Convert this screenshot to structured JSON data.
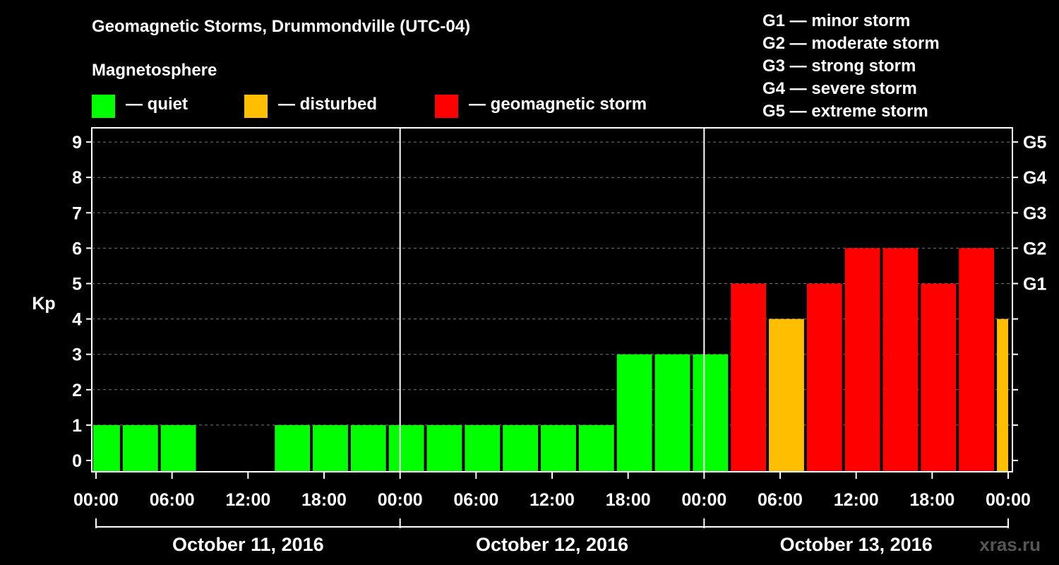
{
  "title": "Geomagnetic Storms, Drummondville (UTC-04)",
  "magnetosphere": {
    "title": "Magnetosphere",
    "items": [
      {
        "label": "— quiet",
        "color": "#00ff00"
      },
      {
        "label": "— disturbed",
        "color": "#ffbf00"
      },
      {
        "label": "— geomagnetic storm",
        "color": "#ff0000"
      }
    ]
  },
  "g_legend": [
    "G1 — minor storm",
    "G2 — moderate storm",
    "G3 — strong storm",
    "G4 — severe storm",
    "G5 — extreme storm"
  ],
  "watermark": "xras.ru",
  "chart_data": {
    "type": "bar",
    "ylabel": "Kp",
    "ylim": [
      0,
      9
    ],
    "yticks": [
      0,
      1,
      2,
      3,
      4,
      5,
      6,
      7,
      8,
      9
    ],
    "right_ticks": [
      {
        "value": 5,
        "label": "G1"
      },
      {
        "value": 6,
        "label": "G2"
      },
      {
        "value": 7,
        "label": "G3"
      },
      {
        "value": 8,
        "label": "G4"
      },
      {
        "value": 9,
        "label": "G5"
      }
    ],
    "grid": "dashed horizontal",
    "xticks": [
      "00:00",
      "06:00",
      "12:00",
      "18:00",
      "00:00",
      "06:00",
      "12:00",
      "18:00",
      "00:00",
      "06:00",
      "12:00",
      "18:00",
      "00:00"
    ],
    "dates": [
      "October 11, 2016",
      "October 12, 2016",
      "October 13, 2016"
    ],
    "x_range_hours": [
      0,
      72
    ],
    "interval_hours": 3,
    "bars": [
      {
        "start": -1,
        "kp": 1,
        "status": "quiet"
      },
      {
        "start": 2,
        "kp": 1,
        "status": "quiet"
      },
      {
        "start": 5,
        "kp": 1,
        "status": "quiet"
      },
      {
        "start": 8,
        "kp": 0,
        "status": "quiet"
      },
      {
        "start": 11,
        "kp": 0,
        "status": "quiet"
      },
      {
        "start": 14,
        "kp": 1,
        "status": "quiet"
      },
      {
        "start": 17,
        "kp": 1,
        "status": "quiet"
      },
      {
        "start": 20,
        "kp": 1,
        "status": "quiet"
      },
      {
        "start": 23,
        "kp": 1,
        "status": "quiet"
      },
      {
        "start": 26,
        "kp": 1,
        "status": "quiet"
      },
      {
        "start": 29,
        "kp": 1,
        "status": "quiet"
      },
      {
        "start": 32,
        "kp": 1,
        "status": "quiet"
      },
      {
        "start": 35,
        "kp": 1,
        "status": "quiet"
      },
      {
        "start": 38,
        "kp": 1,
        "status": "quiet"
      },
      {
        "start": 41,
        "kp": 3,
        "status": "quiet"
      },
      {
        "start": 44,
        "kp": 3,
        "status": "quiet"
      },
      {
        "start": 47,
        "kp": 3,
        "status": "quiet"
      },
      {
        "start": 50,
        "kp": 5,
        "status": "storm"
      },
      {
        "start": 53,
        "kp": 4,
        "status": "disturbed"
      },
      {
        "start": 56,
        "kp": 5,
        "status": "storm"
      },
      {
        "start": 59,
        "kp": 6,
        "status": "storm"
      },
      {
        "start": 62,
        "kp": 6,
        "status": "storm"
      },
      {
        "start": 65,
        "kp": 5,
        "status": "storm"
      },
      {
        "start": 68,
        "kp": 6,
        "status": "storm"
      },
      {
        "start": 71,
        "kp": 4,
        "status": "disturbed"
      }
    ],
    "status_colors": {
      "quiet": "#00ff00",
      "disturbed": "#ffbf00",
      "storm": "#ff0000"
    }
  }
}
